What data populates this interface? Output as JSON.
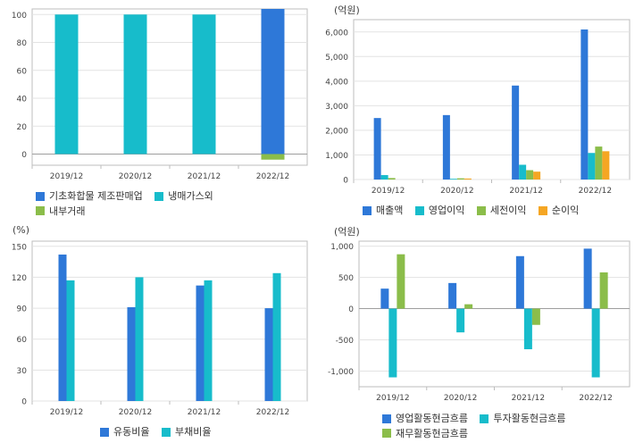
{
  "colors": {
    "blue": "#2e78d8",
    "cyan": "#17bccb",
    "green": "#8bbd4a",
    "orange": "#f5a623"
  },
  "chart_data": [
    {
      "id": "c1",
      "type": "bar",
      "stacked": true,
      "unit": "",
      "categories": [
        "2019/12",
        "2020/12",
        "2021/12",
        "2022/12"
      ],
      "ylim": [
        -8,
        104
      ],
      "yticks": [
        0,
        20,
        40,
        60,
        80,
        100
      ],
      "ytick_labels": [
        "0",
        "20",
        "40",
        "60",
        "80",
        "100"
      ],
      "grid": true,
      "series": [
        {
          "name": "기초화합물 제조판매업",
          "color": "#2e78d8",
          "values": [
            0,
            0,
            0,
            104
          ]
        },
        {
          "name": "냉매가스외",
          "color": "#17bccb",
          "values": [
            100,
            100,
            100,
            0
          ]
        },
        {
          "name": "내부거래",
          "color": "#8bbd4a",
          "values": [
            0,
            0,
            0,
            -4
          ]
        }
      ]
    },
    {
      "id": "c2",
      "type": "bar",
      "unit": "(억원)",
      "categories": [
        "2019/12",
        "2020/12",
        "2021/12",
        "2022/12"
      ],
      "ylim": [
        0,
        6500
      ],
      "yticks": [
        0,
        1000,
        2000,
        3000,
        4000,
        5000,
        6000
      ],
      "ytick_labels": [
        "0",
        "1,000",
        "2,000",
        "3,000",
        "4,000",
        "5,000",
        "6,000"
      ],
      "grid": true,
      "series": [
        {
          "name": "매출액",
          "color": "#2e78d8",
          "values": [
            2500,
            2620,
            3820,
            6100
          ]
        },
        {
          "name": "영업이익",
          "color": "#17bccb",
          "values": [
            180,
            30,
            600,
            1080
          ]
        },
        {
          "name": "세전이익",
          "color": "#8bbd4a",
          "values": [
            60,
            50,
            380,
            1340
          ]
        },
        {
          "name": "순이익",
          "color": "#f5a623",
          "values": [
            0,
            40,
            320,
            1150
          ]
        }
      ]
    },
    {
      "id": "c3",
      "type": "bar",
      "unit": "(%)",
      "categories": [
        "2019/12",
        "2020/12",
        "2021/12",
        "2022/12"
      ],
      "ylim": [
        0,
        155
      ],
      "yticks": [
        0,
        30,
        60,
        90,
        120,
        150
      ],
      "ytick_labels": [
        "0",
        "30",
        "60",
        "90",
        "120",
        "150"
      ],
      "grid": true,
      "series": [
        {
          "name": "유동비율",
          "color": "#2e78d8",
          "values": [
            142,
            91,
            112,
            90
          ]
        },
        {
          "name": "부채비율",
          "color": "#17bccb",
          "values": [
            117,
            120,
            117,
            124
          ]
        }
      ]
    },
    {
      "id": "c4",
      "type": "bar",
      "unit": "(억원)",
      "categories": [
        "2019/12",
        "2020/12",
        "2021/12",
        "2022/12"
      ],
      "ylim": [
        -1250,
        1080
      ],
      "yticks": [
        -1000,
        -500,
        0,
        500,
        1000
      ],
      "ytick_labels": [
        "-1,000",
        "-500",
        "0",
        "500",
        "1,000"
      ],
      "grid": true,
      "series": [
        {
          "name": "영업활동현금흐름",
          "color": "#2e78d8",
          "values": [
            320,
            410,
            840,
            960
          ]
        },
        {
          "name": "투자활동현금흐름",
          "color": "#17bccb",
          "values": [
            -1100,
            -380,
            -650,
            -1100
          ]
        },
        {
          "name": "재무활동현금흐름",
          "color": "#8bbd4a",
          "values": [
            870,
            70,
            -260,
            580
          ]
        }
      ]
    }
  ]
}
